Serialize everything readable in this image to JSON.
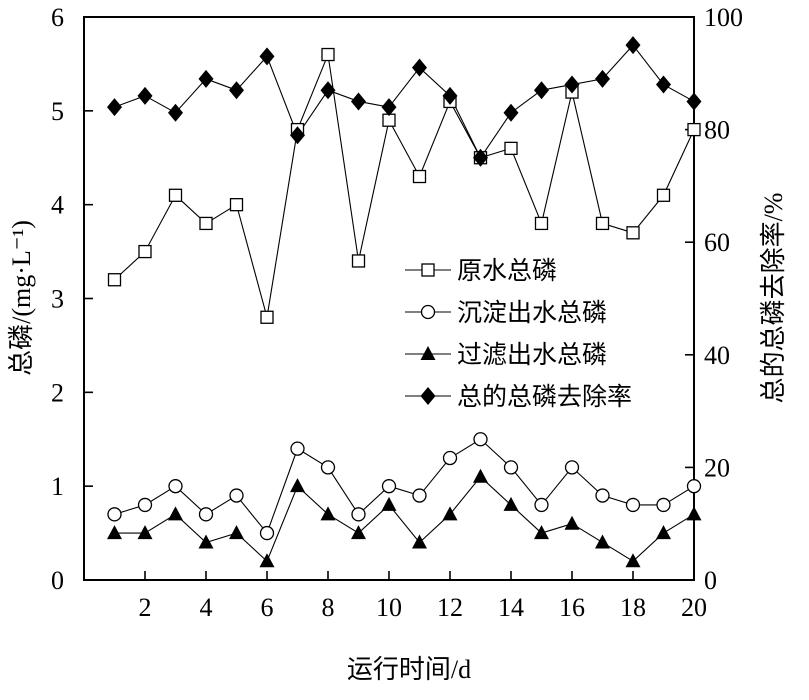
{
  "chart_data": {
    "type": "line",
    "xlabel": "运行时间/d",
    "ylabel_left": "总磷/(mg·L⁻¹)",
    "ylabel_right": "总的总磷去除率/%",
    "xlim": [
      0,
      20
    ],
    "ylim_left": [
      0,
      6
    ],
    "ylim_right": [
      0,
      100
    ],
    "x_ticks": [
      2,
      4,
      6,
      8,
      10,
      12,
      14,
      16,
      18,
      20
    ],
    "y_left_ticks": [
      0,
      1,
      2,
      3,
      4,
      5,
      6
    ],
    "y_right_ticks": [
      0,
      20,
      40,
      60,
      80,
      100
    ],
    "x": [
      1,
      2,
      3,
      4,
      5,
      6,
      7,
      8,
      9,
      10,
      11,
      12,
      13,
      14,
      15,
      16,
      17,
      18,
      19,
      20
    ],
    "grid": false,
    "legend_position": "center-right",
    "series": [
      {
        "name": "原水总磷",
        "axis": "left",
        "marker": "open-square",
        "values": [
          3.2,
          3.5,
          4.1,
          3.8,
          4.0,
          2.8,
          4.8,
          5.6,
          3.4,
          4.9,
          4.3,
          5.1,
          4.5,
          4.6,
          3.8,
          5.2,
          3.8,
          3.7,
          4.1,
          4.8
        ]
      },
      {
        "name": "沉淀出水总磷",
        "axis": "left",
        "marker": "open-circle",
        "values": [
          0.7,
          0.8,
          1.0,
          0.7,
          0.9,
          0.5,
          1.4,
          1.2,
          0.7,
          1.0,
          0.9,
          1.3,
          1.5,
          1.2,
          0.8,
          1.2,
          0.9,
          0.8,
          0.8,
          1.0
        ]
      },
      {
        "name": "过滤出水总磷",
        "axis": "left",
        "marker": "filled-triangle",
        "values": [
          0.5,
          0.5,
          0.7,
          0.4,
          0.5,
          0.2,
          1.0,
          0.7,
          0.5,
          0.8,
          0.4,
          0.7,
          1.1,
          0.8,
          0.5,
          0.6,
          0.4,
          0.2,
          0.5,
          0.7
        ]
      },
      {
        "name": "总的总磷去除率",
        "axis": "right",
        "marker": "filled-diamond",
        "values": [
          84,
          86,
          83,
          89,
          87,
          93,
          79,
          87,
          85,
          84,
          91,
          86,
          75,
          83,
          87,
          88,
          89,
          95,
          88,
          85
        ]
      }
    ]
  }
}
